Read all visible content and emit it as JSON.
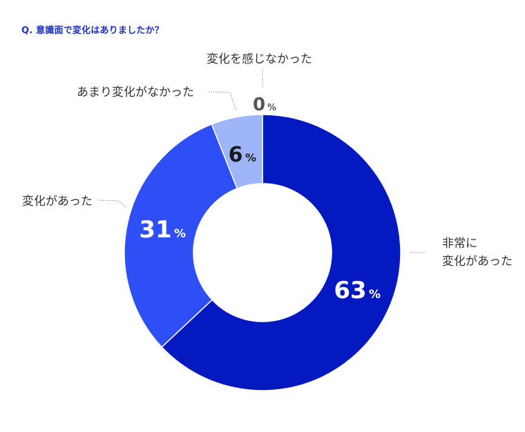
{
  "question": "Q. 意識面で変化はありましたか？",
  "chart_data": {
    "type": "pie",
    "donut": true,
    "title": "Q. 意識面で変化はありましたか？",
    "categories": [
      "非常に変化があった",
      "変化があった",
      "あまり変化がなかった",
      "変化を感じなかった"
    ],
    "values": [
      63,
      31,
      6,
      0
    ],
    "unit": "%",
    "colors": [
      "#0519c0",
      "#2e4ff5",
      "#9fb5fa",
      "#d0dafc"
    ],
    "start": "12 o'clock, clockwise",
    "labels": [
      {
        "lines": [
          "非常に",
          "変化があった"
        ]
      },
      {
        "lines": [
          "変化があった"
        ]
      },
      {
        "lines": [
          "あまり変化がなかった"
        ]
      },
      {
        "lines": [
          "変化を感じなかった"
        ]
      }
    ],
    "value_labels": [
      "63",
      "31",
      "6",
      "0"
    ],
    "percent_sign": "%"
  }
}
